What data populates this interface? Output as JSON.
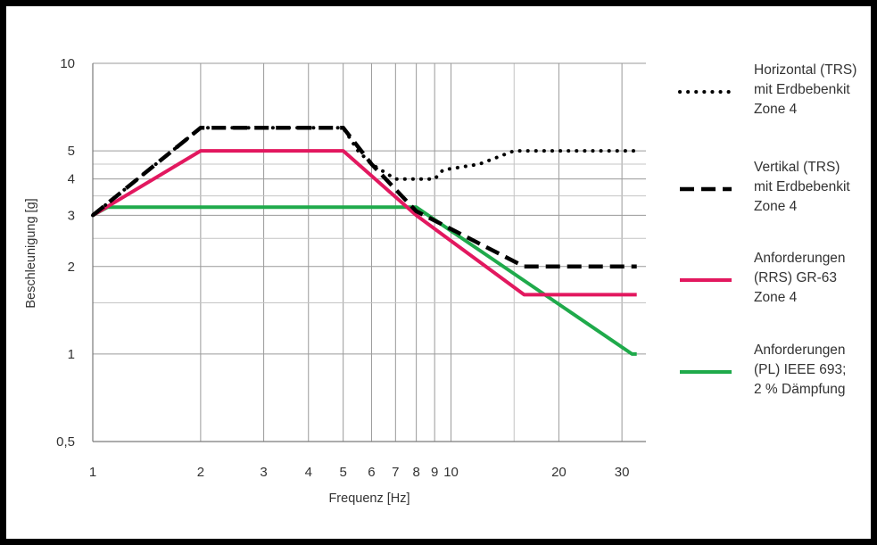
{
  "colors": {
    "horizontal": "#000000",
    "vertical": "#000000",
    "rrs": "#e2185f",
    "pl": "#1faa4b"
  },
  "chart_data": {
    "type": "line",
    "xlabel": "Frequenz [Hz]",
    "ylabel": "Beschleunigung [g]",
    "xscale": "log",
    "yscale": "log",
    "xlim": [
      1,
      35
    ],
    "ylim": [
      0.5,
      10
    ],
    "grid": true,
    "legend_position": "right",
    "x_ticks": [
      {
        "value": 1,
        "label": "1"
      },
      {
        "value": 2,
        "label": "2"
      },
      {
        "value": 3,
        "label": "3"
      },
      {
        "value": 4,
        "label": "4"
      },
      {
        "value": 5,
        "label": "5"
      },
      {
        "value": 6,
        "label": "6"
      },
      {
        "value": 7,
        "label": "7"
      },
      {
        "value": 8,
        "label": "8"
      },
      {
        "value": 9,
        "label": "9"
      },
      {
        "value": 10,
        "label": "10"
      },
      {
        "value": 20,
        "label": "20"
      },
      {
        "value": 30,
        "label": "30"
      }
    ],
    "y_ticks": [
      {
        "value": 0.5,
        "label": "0,5"
      },
      {
        "value": 1,
        "label": "1"
      },
      {
        "value": 2,
        "label": "2"
      },
      {
        "value": 3,
        "label": "3"
      },
      {
        "value": 4,
        "label": "4"
      },
      {
        "value": 5,
        "label": "5"
      },
      {
        "value": 10,
        "label": "10"
      }
    ],
    "y_minor_gridlines": [
      1.5,
      2.5,
      3.5,
      4.5
    ],
    "x_minor_gridlines": [
      15
    ],
    "series": [
      {
        "name": "Horizontal (TRS) mit Erdbebenkit Zone 4",
        "legend_lines": [
          "Horizontal (TRS)",
          "mit Erdbebenkit",
          "Zone 4"
        ],
        "style": "dotted",
        "color_key": "horizontal",
        "points": [
          [
            1,
            3
          ],
          [
            2,
            6
          ],
          [
            5,
            6
          ],
          [
            5.5,
            5
          ],
          [
            6,
            4.5
          ],
          [
            7,
            4
          ],
          [
            9,
            4
          ],
          [
            9.5,
            4.3
          ],
          [
            12,
            4.5
          ],
          [
            15,
            5
          ],
          [
            33,
            5
          ]
        ]
      },
      {
        "name": "Vertikal (TRS) mit Erdbebenkit Zone 4",
        "legend_lines": [
          "Vertikal (TRS)",
          "mit Erdbebenkit",
          "Zone 4"
        ],
        "style": "dashed",
        "color_key": "vertical",
        "points": [
          [
            1,
            3
          ],
          [
            2,
            6
          ],
          [
            5,
            6
          ],
          [
            6,
            4.5
          ],
          [
            8,
            3.1
          ],
          [
            16,
            2
          ],
          [
            33,
            2
          ]
        ]
      },
      {
        "name": "Anforderungen (RRS) GR-63 Zone 4",
        "legend_lines": [
          "Anforderungen",
          "(RRS) GR-63",
          "Zone 4"
        ],
        "style": "solid",
        "color_key": "rrs",
        "points": [
          [
            1,
            3
          ],
          [
            2,
            5
          ],
          [
            5,
            5
          ],
          [
            8,
            3
          ],
          [
            16,
            1.6
          ],
          [
            33,
            1.6
          ]
        ]
      },
      {
        "name": "Anforderungen (PL) IEEE 693; 2 % Dämpfung",
        "legend_lines": [
          "Anforderungen",
          "(PL) IEEE 693;",
          "2 % Dämpfung"
        ],
        "style": "solid",
        "color_key": "pl",
        "points": [
          [
            1,
            3
          ],
          [
            1.1,
            3.2
          ],
          [
            8,
            3.2
          ],
          [
            32,
            1
          ],
          [
            33,
            1
          ]
        ]
      }
    ]
  }
}
